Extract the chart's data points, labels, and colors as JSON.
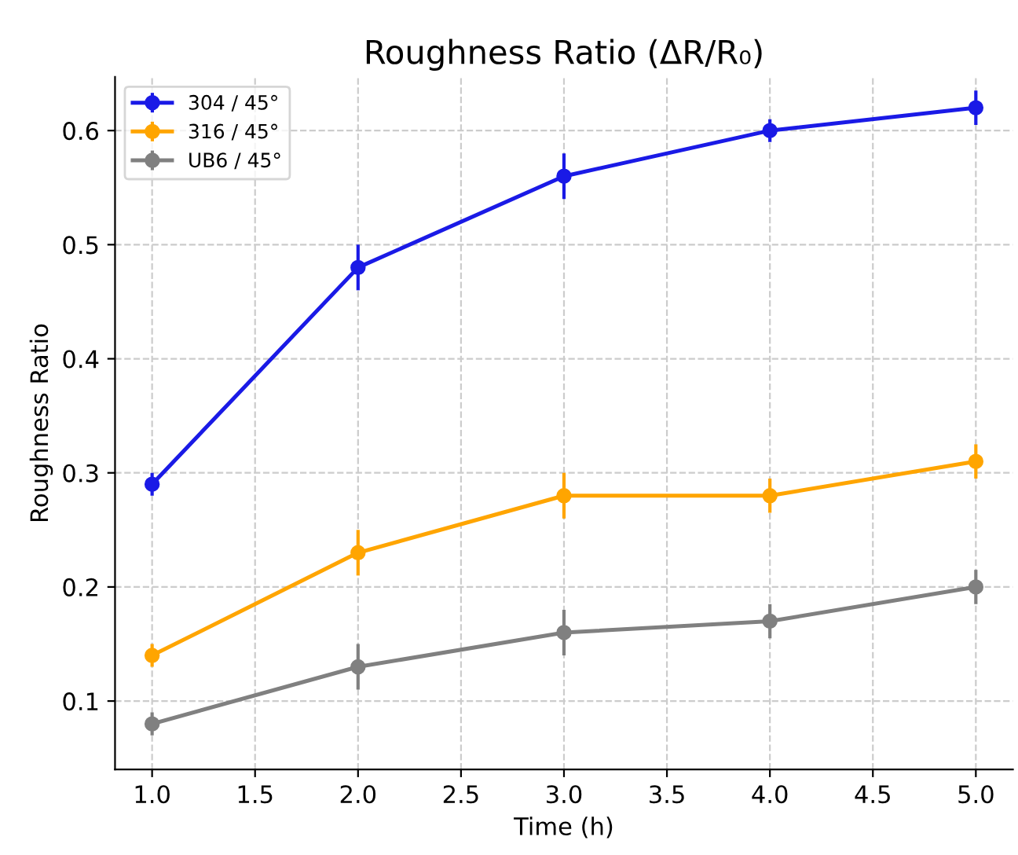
{
  "chart_data": {
    "type": "line",
    "title": "Roughness Ratio (ΔR/R₀)",
    "xlabel": "Time (h)",
    "ylabel": "Roughness Ratio",
    "x": [
      1.0,
      2.0,
      3.0,
      4.0,
      5.0
    ],
    "series": [
      {
        "name": "304 / 45°",
        "color": "#1a1ae6",
        "values": [
          0.29,
          0.48,
          0.56,
          0.6,
          0.62
        ],
        "errors": [
          0.01,
          0.02,
          0.02,
          0.01,
          0.015
        ]
      },
      {
        "name": "316 / 45°",
        "color": "#ffa500",
        "values": [
          0.14,
          0.23,
          0.28,
          0.28,
          0.31
        ],
        "errors": [
          0.01,
          0.02,
          0.02,
          0.015,
          0.015
        ]
      },
      {
        "name": "UB6 / 45°",
        "color": "#808080",
        "values": [
          0.08,
          0.13,
          0.16,
          0.17,
          0.2
        ],
        "errors": [
          0.01,
          0.02,
          0.02,
          0.015,
          0.015
        ]
      }
    ],
    "xlim": [
      0.82,
      5.18
    ],
    "ylim": [
      0.04,
      0.647
    ],
    "xticks": [
      {
        "value": 1.0,
        "label": "1.0"
      },
      {
        "value": 1.5,
        "label": "1.5"
      },
      {
        "value": 2.0,
        "label": "2.0"
      },
      {
        "value": 2.5,
        "label": "2.5"
      },
      {
        "value": 3.0,
        "label": "3.0"
      },
      {
        "value": 3.5,
        "label": "3.5"
      },
      {
        "value": 4.0,
        "label": "4.0"
      },
      {
        "value": 4.5,
        "label": "4.5"
      },
      {
        "value": 5.0,
        "label": "5.0"
      }
    ],
    "yticks": [
      0.1,
      0.2,
      0.3,
      0.4,
      0.5,
      0.6
    ],
    "grid": true,
    "legend": "top left",
    "marker": "circle",
    "line_style": "solid"
  }
}
